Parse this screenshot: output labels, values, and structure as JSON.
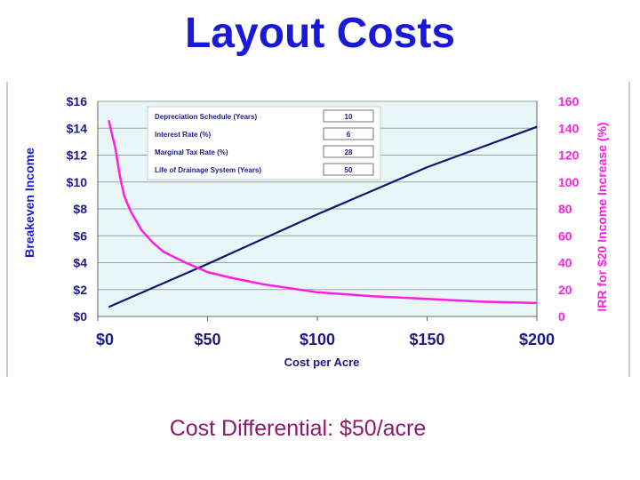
{
  "slide": {
    "title": "Layout Costs",
    "caption": "Cost Differential: $50/acre"
  },
  "colors": {
    "title": "#1a1ad6",
    "caption": "#8b1a6b",
    "line_breakeven": "#141470",
    "line_irr": "#ff1ee6",
    "plot_background": "#e9f6f7",
    "right_axis": "#ff1ee6"
  },
  "chart_data": {
    "type": "line",
    "title": "",
    "xlabel": "Cost per Acre",
    "ylabel": "Breakeven Income",
    "y2label": "IRR for $20 Income Increase (%)",
    "xlim": [
      0,
      200
    ],
    "ylim": [
      0,
      16
    ],
    "y2lim": [
      0,
      160
    ],
    "x_ticks": [
      "$0",
      "$50",
      "$100",
      "$150",
      "$200"
    ],
    "y_ticks": [
      "$0",
      "$2",
      "$4",
      "$6",
      "$8",
      "$10",
      "$12",
      "$14",
      "$16"
    ],
    "y2_ticks": [
      "0",
      "20",
      "40",
      "60",
      "80",
      "100",
      "120",
      "140",
      "160"
    ],
    "grid": "horizontal",
    "series": [
      {
        "axis": "left",
        "x": [
          5,
          50,
          100,
          150,
          200
        ],
        "values": [
          0.7,
          3.9,
          7.6,
          11.1,
          14.1
        ]
      },
      {
        "axis": "right",
        "x": [
          5,
          8,
          10,
          12,
          15,
          20,
          25,
          30,
          40,
          50,
          60,
          75,
          100,
          125,
          150,
          175,
          200
        ],
        "values": [
          146,
          125,
          105,
          90,
          78,
          64,
          55,
          48,
          40,
          33,
          29,
          24,
          18,
          15,
          13,
          11,
          10
        ]
      }
    ],
    "inset_table": {
      "rows": [
        {
          "label": "Depreciation Schedule (Years)",
          "value": "10"
        },
        {
          "label": "Interest Rate (%)",
          "value": "6"
        },
        {
          "label": "Marginal Tax Rate (%)",
          "value": "28"
        },
        {
          "label": "Life of Drainage System (Years)",
          "value": "50"
        }
      ]
    }
  }
}
